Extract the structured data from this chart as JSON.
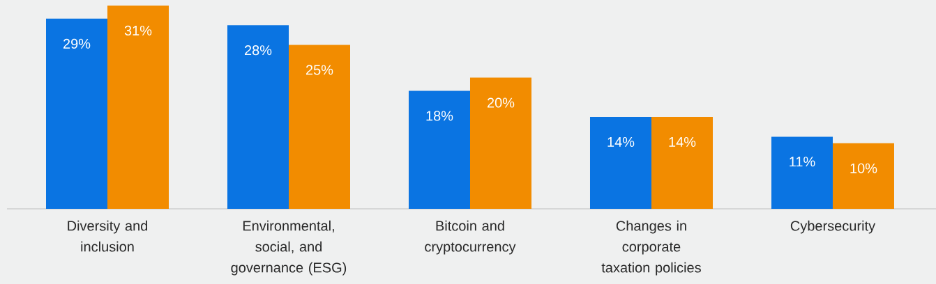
{
  "chart_data": {
    "type": "bar",
    "categories": [
      "Diversity and inclusion",
      "Environmental, social, and governance (ESG)",
      "Bitcoin and cryptocurrency",
      "Changes in corporate taxation policies",
      "Cybersecurity"
    ],
    "series": [
      {
        "color": "#0a74e2",
        "values": [
          29,
          28,
          18,
          14,
          11
        ],
        "value_labels": [
          "29%",
          "28%",
          "18%",
          "14%",
          "11%"
        ]
      },
      {
        "color": "#f28c00",
        "values": [
          31,
          25,
          20,
          14,
          10
        ],
        "value_labels": [
          "31%",
          "25%",
          "20%",
          "14%",
          "10%"
        ]
      }
    ]
  }
}
